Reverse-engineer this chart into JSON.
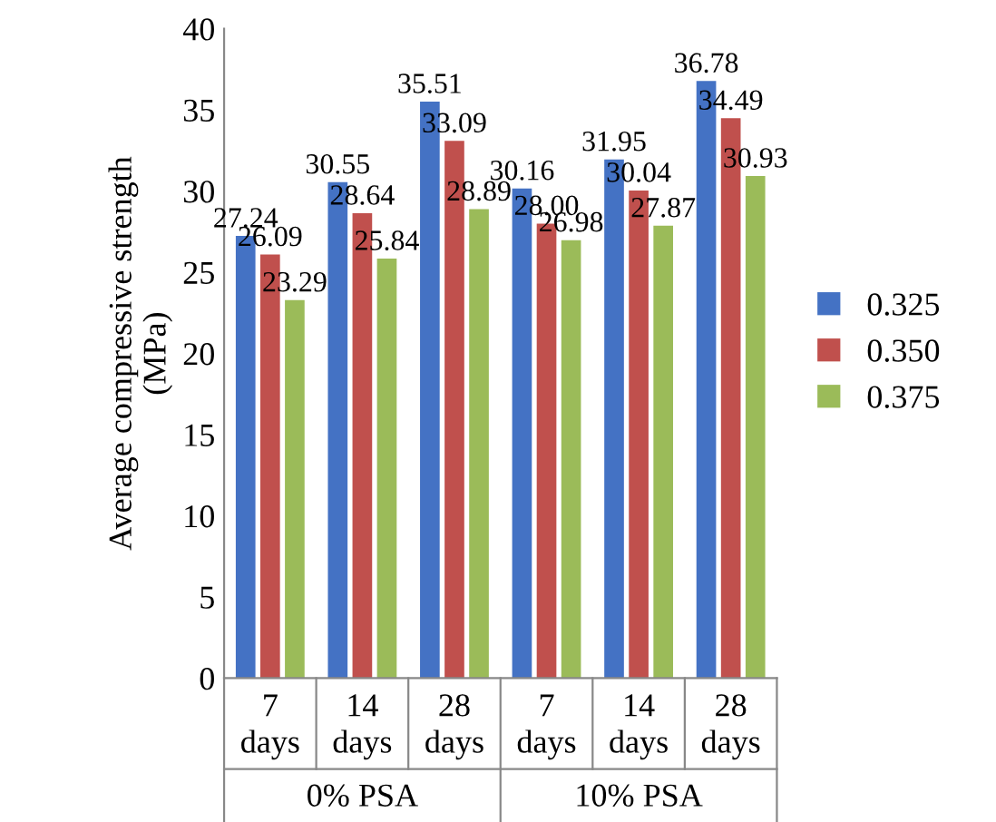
{
  "chart_data": {
    "type": "bar",
    "ylabel": "Average compressive strength\n(MPa)",
    "categories": [
      "7\ndays",
      "14\ndays",
      "28\ndays",
      "7\ndays",
      "14\ndays",
      "28\ndays"
    ],
    "annotations": [
      "0% PSA",
      "10% PSA"
    ],
    "series": [
      {
        "name": "0.325",
        "color": "#4472c4",
        "values": [
          27.24,
          30.55,
          35.51,
          30.16,
          31.95,
          36.78
        ],
        "value_labels": [
          "27.24",
          "30.55",
          "35.51",
          "30.16",
          "31.95",
          "36.78"
        ]
      },
      {
        "name": "0.350",
        "color": "#c0504d",
        "values": [
          26.09,
          28.64,
          33.09,
          28.0,
          30.04,
          34.49
        ],
        "value_labels": [
          "26.09",
          "28.64",
          "33.09",
          "28.00",
          "30.04",
          "34.49"
        ]
      },
      {
        "name": "0.375",
        "color": "#9bbb59",
        "values": [
          23.29,
          25.84,
          28.89,
          26.98,
          27.87,
          30.93
        ],
        "value_labels": [
          "23.29",
          "25.84",
          "28.89",
          "26.98",
          "27.87",
          "30.93"
        ]
      }
    ],
    "ylim": [
      0,
      40
    ],
    "yticks": [
      0,
      5,
      10,
      15,
      20,
      25,
      30,
      35,
      40
    ],
    "grid": false,
    "legend": "right"
  }
}
